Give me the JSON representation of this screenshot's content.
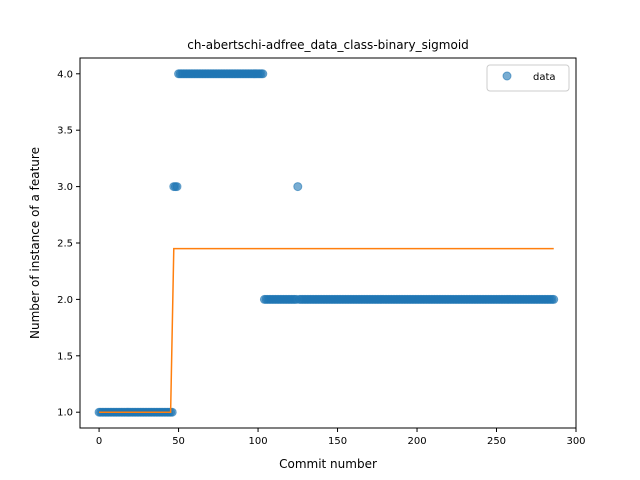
{
  "chart_data": {
    "type": "scatter",
    "title": "ch-abertschi-adfree_data_class-binary_sigmoid",
    "xlabel": "Commit number",
    "ylabel": "Number of instance of a feature",
    "xlim": [
      -12,
      300
    ],
    "ylim": [
      0.86,
      4.14
    ],
    "xticks": [
      0,
      50,
      100,
      150,
      200,
      250,
      300
    ],
    "yticks": [
      1.0,
      1.5,
      2.0,
      2.5,
      3.0,
      3.5,
      4.0
    ],
    "xtick_labels": [
      "0",
      "50",
      "100",
      "150",
      "200",
      "250",
      "300"
    ],
    "ytick_labels": [
      "1.0",
      "1.5",
      "2.0",
      "2.5",
      "3.0",
      "3.5",
      "4.0"
    ],
    "grid": false,
    "legend": {
      "position": "top-right",
      "entries": [
        "data"
      ]
    },
    "colors": {
      "data": "#1f77b4",
      "fit": "#ff7f0e"
    },
    "series": [
      {
        "name": "data",
        "kind": "scatter",
        "segments": [
          {
            "x_from": 0,
            "x_to": 46,
            "y": 1
          },
          {
            "x_from": 47,
            "x_to": 49,
            "y": 3
          },
          {
            "x_from": 50,
            "x_to": 103,
            "y": 4
          },
          {
            "x_from": 104,
            "x_to": 124,
            "y": 2
          },
          {
            "x_from": 125,
            "x_to": 125,
            "y": 3
          },
          {
            "x_from": 126,
            "x_to": 286,
            "y": 2
          }
        ]
      },
      {
        "kind": "line",
        "x": [
          0,
          45,
          47,
          286
        ],
        "y": [
          1.0,
          1.0,
          2.45,
          2.45
        ]
      }
    ]
  }
}
